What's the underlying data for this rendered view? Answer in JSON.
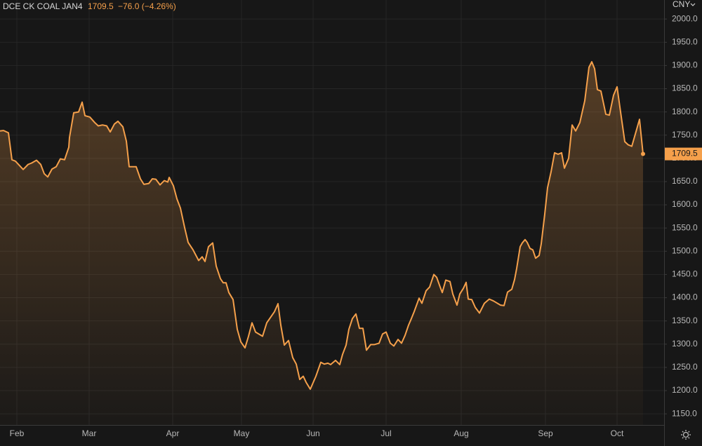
{
  "chart_data": {
    "type": "area-line",
    "symbol": "DCE CK COAL JAN4",
    "last_price": 1709.5,
    "change": "−76.0 (−4.26%)",
    "currency": "CNY",
    "color": "#f5a04b",
    "x": [
      0,
      1,
      2.4,
      3.4,
      4.4,
      6.6,
      8,
      9,
      10.4,
      11.6,
      12.6,
      13.6,
      14.8,
      16,
      17.2,
      18.4,
      19.6,
      19.8,
      21,
      22.4,
      23.4,
      24.2,
      25.6,
      27,
      28,
      29.2,
      30.4,
      31.4,
      32.6,
      33.6,
      35,
      36,
      36.8,
      38,
      38.8,
      40,
      41,
      42.4,
      43.4,
      44.4,
      45.6,
      46.8,
      47.8,
      48.2,
      49.4,
      50.4,
      51.4,
      52.6,
      53.6,
      55,
      56.6,
      57.6,
      58.4,
      59.4,
      60.6,
      61.6,
      62.8,
      63.6,
      64.4,
      65.2,
      66.4,
      67.6,
      68.6,
      69.8,
      70.8,
      71.8,
      72.8,
      74.8,
      76,
      77.2,
      78.2,
      79.2,
      80,
      81,
      82.2,
      83.4,
      84.4,
      85.4,
      86.4,
      87.2,
      88.4,
      90,
      91.4,
      92.4,
      93.4,
      94.2,
      95.6,
      96.8,
      97.6,
      98.6,
      99.4,
      100.4,
      101.4,
      102.4,
      103.4,
      104.4,
      105.6,
      106.6,
      108,
      109,
      110,
      111.2,
      112.2,
      113.4,
      114.4,
      115.4,
      116.4,
      117.2,
      118,
      119.4,
      120.2,
      121.4,
      122.4,
      123.6,
      124.4,
      125.4,
      126,
      127,
      128.2,
      129,
      130.2,
      131,
      132,
      132.8,
      133.4,
      134.4,
      135.4,
      136.6,
      138,
      139.4,
      140.6,
      142.6,
      143.6,
      144.6,
      145.8,
      146.6,
      147.2,
      148.2,
      148.8,
      149.6,
      150.2,
      151,
      151.8,
      152.6,
      153.6,
      154.2,
      155.2,
      156,
      157,
      158,
      159,
      160,
      160.8,
      162,
      163,
      164,
      165.2,
      166.6,
      167.8,
      168.6,
      169.4,
      170.2,
      171.2,
      172.6,
      173.6,
      174.8,
      175.8,
      176.8,
      178,
      179,
      180,
      182.2,
      183.2
    ],
    "values": [
      1759,
      1760,
      1755,
      1697,
      1694,
      1676,
      1687,
      1690,
      1696,
      1687,
      1667,
      1660,
      1677,
      1682,
      1699,
      1697,
      1724,
      1745,
      1798,
      1800,
      1821,
      1792,
      1789,
      1777,
      1770,
      1772,
      1770,
      1757,
      1774,
      1780,
      1768,
      1737,
      1682,
      1682,
      1682,
      1656,
      1644,
      1646,
      1656,
      1655,
      1643,
      1652,
      1649,
      1659,
      1641,
      1613,
      1593,
      1551,
      1519,
      1503,
      1480,
      1488,
      1478,
      1510,
      1518,
      1468,
      1441,
      1432,
      1432,
      1411,
      1396,
      1332,
      1305,
      1292,
      1317,
      1346,
      1326,
      1317,
      1346,
      1359,
      1370,
      1387,
      1341,
      1298,
      1308,
      1271,
      1257,
      1224,
      1231,
      1218,
      1203,
      1231,
      1261,
      1257,
      1259,
      1256,
      1265,
      1256,
      1278,
      1298,
      1332,
      1355,
      1365,
      1334,
      1334,
      1287,
      1299,
      1299,
      1302,
      1322,
      1326,
      1302,
      1296,
      1310,
      1302,
      1319,
      1341,
      1355,
      1370,
      1399,
      1388,
      1415,
      1423,
      1450,
      1444,
      1423,
      1411,
      1438,
      1435,
      1408,
      1384,
      1408,
      1420,
      1433,
      1397,
      1396,
      1379,
      1367,
      1388,
      1397,
      1393,
      1384,
      1383,
      1412,
      1418,
      1439,
      1463,
      1510,
      1518,
      1525,
      1519,
      1506,
      1503,
      1485,
      1491,
      1516,
      1580,
      1637,
      1671,
      1712,
      1709,
      1712,
      1679,
      1700,
      1772,
      1759,
      1777,
      1824,
      1896,
      1908,
      1893,
      1848,
      1845,
      1795,
      1793,
      1836,
      1854,
      1800,
      1736,
      1729,
      1726,
      1784,
      1709.5
    ],
    "xlim": [
      0,
      189.2
    ],
    "xticks": [
      {
        "value": 4.8,
        "label": "Feb"
      },
      {
        "value": 25.4,
        "label": "Mar"
      },
      {
        "value": 49.2,
        "label": "Apr"
      },
      {
        "value": 68.8,
        "label": "May"
      },
      {
        "value": 89.2,
        "label": "Jun"
      },
      {
        "value": 110,
        "label": "Jul"
      },
      {
        "value": 131.4,
        "label": "Aug"
      },
      {
        "value": 155.4,
        "label": "Sep"
      },
      {
        "value": 175.8,
        "label": "Oct"
      }
    ],
    "ylim": [
      1126,
      2041
    ],
    "yticks": [
      {
        "value": 1150,
        "label": "1150.0"
      },
      {
        "value": 1200,
        "label": "1200.0"
      },
      {
        "value": 1250,
        "label": "1250.0"
      },
      {
        "value": 1300,
        "label": "1300.0"
      },
      {
        "value": 1350,
        "label": "1350.0"
      },
      {
        "value": 1400,
        "label": "1400.0"
      },
      {
        "value": 1450,
        "label": "1450.0"
      },
      {
        "value": 1500,
        "label": "1500.0"
      },
      {
        "value": 1550,
        "label": "1550.0"
      },
      {
        "value": 1600,
        "label": "1600.0"
      },
      {
        "value": 1650,
        "label": "1650.0"
      },
      {
        "value": 1700,
        "label": "1700.0"
      },
      {
        "value": 1750,
        "label": "1750.0"
      },
      {
        "value": 1800,
        "label": "1800.0"
      },
      {
        "value": 1850,
        "label": "1850.0"
      },
      {
        "value": 1900,
        "label": "1900.0"
      },
      {
        "value": 1950,
        "label": "1950.0"
      },
      {
        "value": 2000,
        "label": "2000.0"
      }
    ],
    "grid": true
  }
}
